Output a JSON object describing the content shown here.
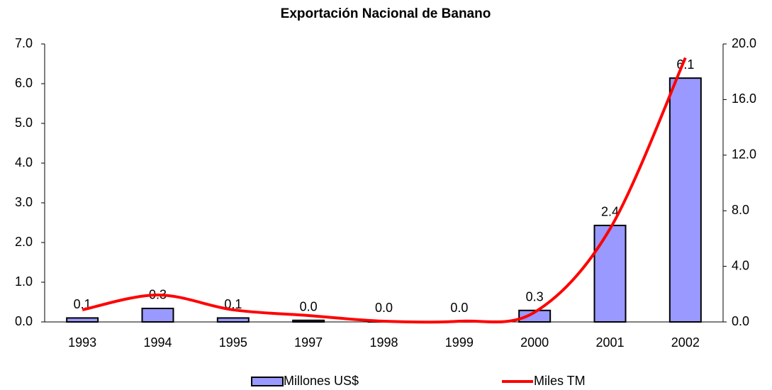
{
  "chart_data": {
    "type": "bar_line",
    "title": "Exportación Nacional de Banano",
    "categories": [
      "1993",
      "1994",
      "1995",
      "1997",
      "1998",
      "1999",
      "2000",
      "2001",
      "2002"
    ],
    "series": [
      {
        "name": "Millones US$",
        "color": "#9999ff",
        "type": "bar",
        "values": [
          0.1,
          0.34,
          0.1,
          0.04,
          0.01,
          0.01,
          0.29,
          2.43,
          6.14
        ],
        "value_labels": [
          "0.1",
          "0.3",
          "0.1",
          "0.0",
          "0.0",
          "0.0",
          "0.3",
          "2.4",
          "6.1"
        ]
      },
      {
        "name": "Miles TM",
        "color": "#ff0000",
        "type": "line",
        "axis": "y2",
        "values": [
          0.87,
          1.94,
          0.87,
          0.46,
          0.05,
          0.05,
          0.7,
          6.7,
          19.0
        ]
      }
    ],
    "ylim": [
      0,
      7
    ],
    "yticks": [
      {
        "value": 0,
        "label": "0.0"
      },
      {
        "value": 1,
        "label": "1.0"
      },
      {
        "value": 2,
        "label": "2.0"
      },
      {
        "value": 3,
        "label": "3.0"
      },
      {
        "value": 4,
        "label": "4.0"
      },
      {
        "value": 5,
        "label": "5.0"
      },
      {
        "value": 6,
        "label": "6.0"
      },
      {
        "value": 7,
        "label": "7.0"
      }
    ],
    "y2lim": [
      0,
      20
    ],
    "y2ticks": [
      {
        "value": 0,
        "label": "0.0"
      },
      {
        "value": 4,
        "label": "4.0"
      },
      {
        "value": 8,
        "label": "8.0"
      },
      {
        "value": 12,
        "label": "12.0"
      },
      {
        "value": 16,
        "label": "16.0"
      },
      {
        "value": 20,
        "label": "20.0"
      }
    ]
  }
}
